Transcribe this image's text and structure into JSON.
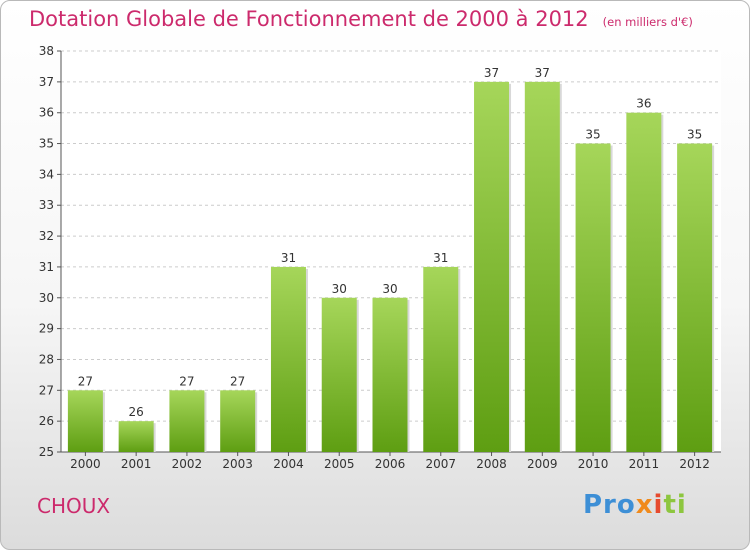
{
  "header": {
    "title": "Dotation Globale de Fonctionnement de 2000 à 2012",
    "unit": "(en milliers d'€)"
  },
  "footer": {
    "commune": "CHOUX",
    "brand": {
      "p1": "Pro",
      "p2": "x",
      "p3": "i",
      "p4": "ti"
    }
  },
  "colors": {
    "accent": "#cc2a6c",
    "bar_top": "#a6d65a",
    "bar_bottom": "#5e9e12"
  },
  "chart_data": {
    "type": "bar",
    "title": "Dotation Globale de Fonctionnement de 2000 à 2012",
    "categories": [
      "2000",
      "2001",
      "2002",
      "2003",
      "2004",
      "2005",
      "2006",
      "2007",
      "2008",
      "2009",
      "2010",
      "2011",
      "2012"
    ],
    "values": [
      27,
      26,
      27,
      27,
      31,
      30,
      30,
      31,
      37,
      37,
      35,
      36,
      35
    ],
    "ylim": [
      25,
      38
    ],
    "yticks": [
      25,
      26,
      27,
      28,
      29,
      30,
      31,
      32,
      33,
      34,
      35,
      36,
      37,
      38
    ],
    "grid": "horizontal dashed",
    "data_labels": true
  }
}
